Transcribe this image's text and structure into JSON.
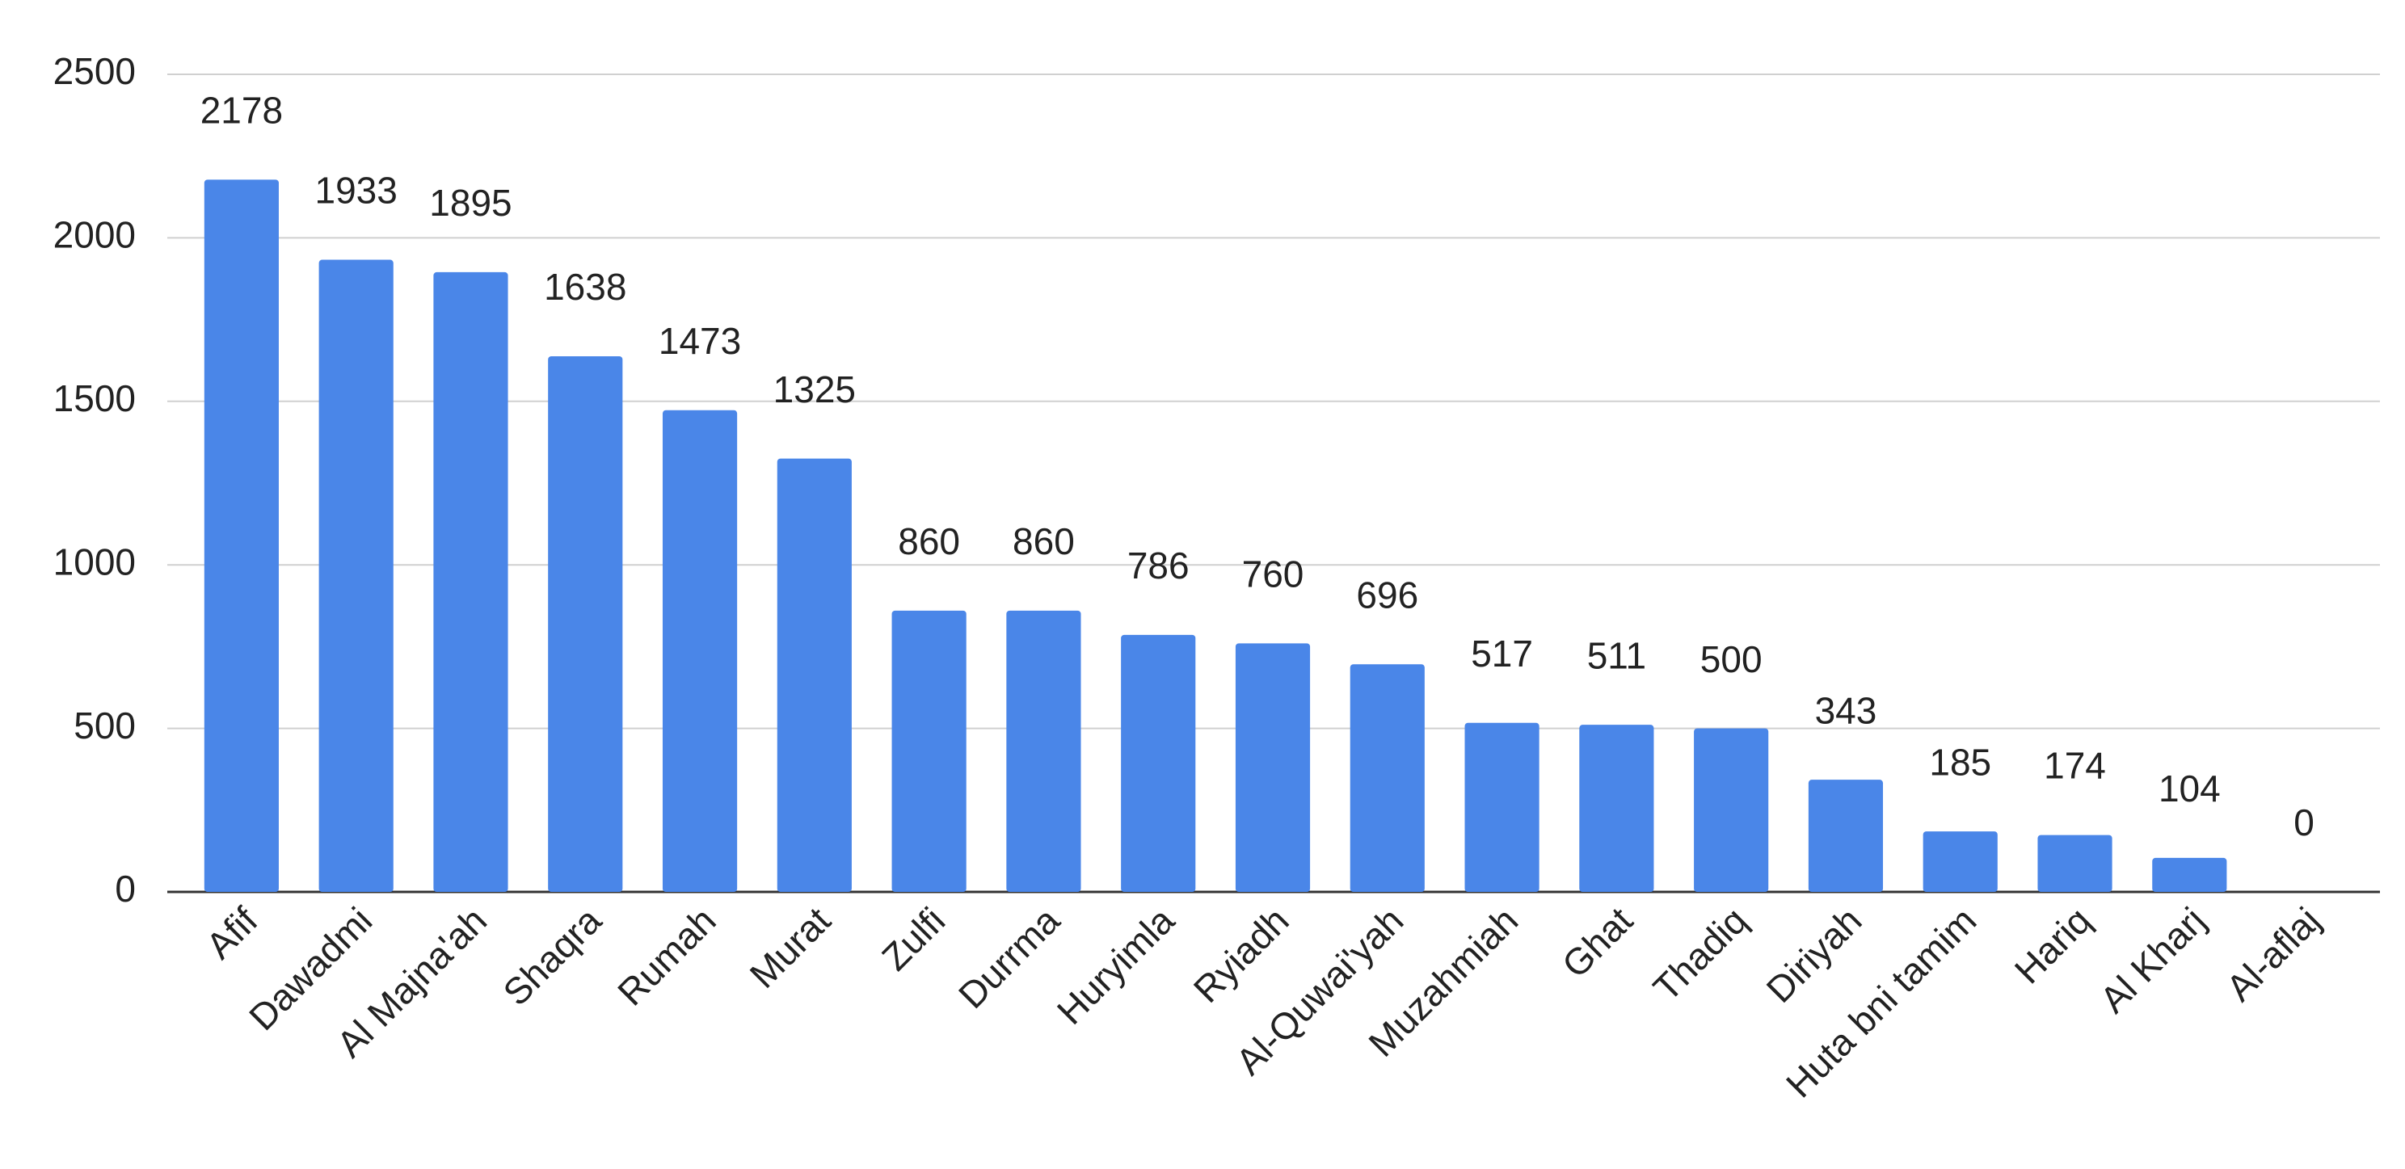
{
  "chart_data": {
    "type": "bar",
    "categories": [
      "Afif",
      "Dawadmi",
      "Al Majna'ah",
      "Shaqra",
      "Rumah",
      "Murat",
      "Zulfi",
      "Durrma",
      "Huryimla",
      "Ryiadh",
      "Al-Quwai'yah",
      "Muzahmiah",
      "Ghat",
      "Thadiq",
      "Diriyah",
      "Huta bni tamim",
      "Hariq",
      "Al Kharj",
      "Al-aflaj"
    ],
    "values": [
      2178,
      1933,
      1895,
      1638,
      1473,
      1325,
      860,
      860,
      786,
      760,
      696,
      517,
      511,
      500,
      343,
      185,
      174,
      104,
      0
    ],
    "color": "#4a86e8",
    "label_color": "#6d9eeb",
    "ylim": [
      0,
      2500
    ],
    "yticks": [
      0,
      500,
      1000,
      1500,
      2000,
      2500
    ],
    "grid": true
  }
}
